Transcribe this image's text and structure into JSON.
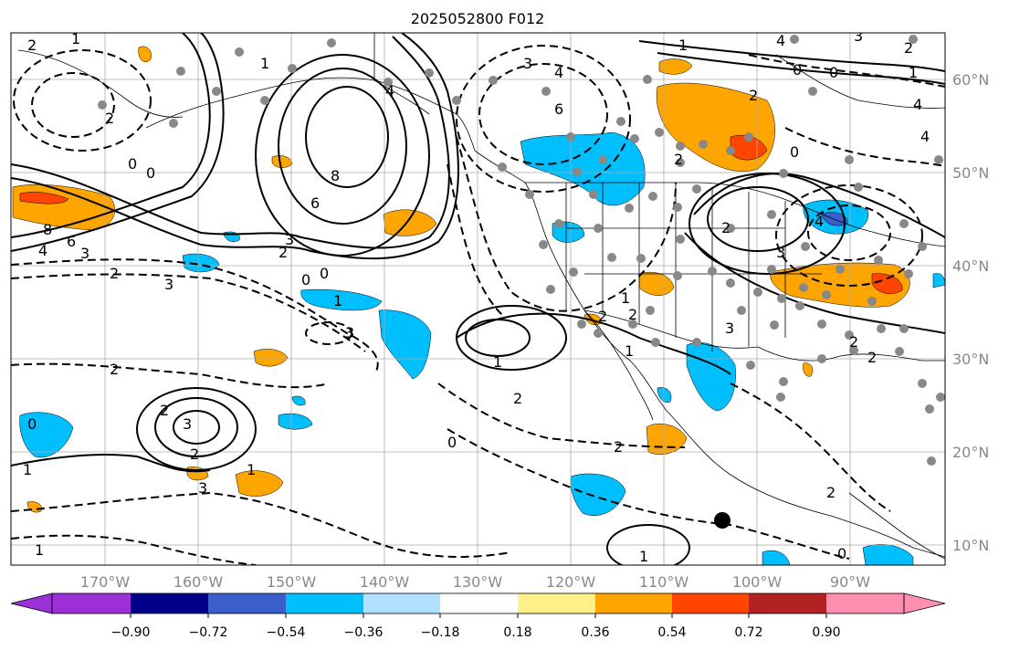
{
  "title": "2025052800 F012",
  "longitude_labels": [
    "170°W",
    "160°W",
    "150°W",
    "140°W",
    "130°W",
    "120°W",
    "110°W",
    "100°W",
    "90°W"
  ],
  "latitude_labels": [
    "60°N",
    "50°N",
    "40°N",
    "30°N",
    "20°N",
    "10°N"
  ],
  "colorbar": {
    "tick_labels": [
      "−0.90",
      "−0.72",
      "−0.54",
      "−0.36",
      "−0.18",
      "0.18",
      "0.36",
      "0.54",
      "0.72",
      "0.90"
    ],
    "colors": [
      "#9b30d9",
      "#00008b",
      "#3a5fcd",
      "#00bfff",
      "#b0e2ff",
      "#ffffff",
      "#fff08a",
      "#ffa500",
      "#ff4500",
      "#b22222",
      "#ff8fb0"
    ]
  },
  "contour_labels": [
    {
      "id": "c-2-a",
      "text": "2"
    },
    {
      "id": "c1-a",
      "text": "1"
    },
    {
      "id": "c-2-b",
      "text": "2"
    },
    {
      "id": "c1-b",
      "text": "1"
    },
    {
      "id": "c-8-a",
      "text": "8"
    },
    {
      "id": "c-6-a",
      "text": "6"
    },
    {
      "id": "c-4-a",
      "text": "4"
    },
    {
      "id": "c-3-a",
      "text": "3"
    },
    {
      "id": "c-2-c",
      "text": "2"
    },
    {
      "id": "c0-a",
      "text": "0"
    },
    {
      "id": "c0-b",
      "text": "0"
    },
    {
      "id": "c8-b",
      "text": "8"
    },
    {
      "id": "c6-b",
      "text": "6"
    },
    {
      "id": "c3-b",
      "text": "3"
    },
    {
      "id": "c2-d",
      "text": "2"
    },
    {
      "id": "c0-c",
      "text": "0"
    },
    {
      "id": "c0-d",
      "text": "0"
    },
    {
      "id": "c-3-e",
      "text": "3"
    },
    {
      "id": "c-3-f",
      "text": "3"
    },
    {
      "id": "c-1-g",
      "text": "1"
    },
    {
      "id": "c-3-h",
      "text": "3"
    },
    {
      "id": "c-4-i",
      "text": "4"
    },
    {
      "id": "c-6-j",
      "text": "6"
    },
    {
      "id": "c-2-k",
      "text": "2"
    },
    {
      "id": "c4-l",
      "text": "4"
    },
    {
      "id": "c-2-m",
      "text": "2"
    },
    {
      "id": "c0-n",
      "text": "0"
    },
    {
      "id": "c0-o",
      "text": "0"
    },
    {
      "id": "c-1-p",
      "text": "1"
    },
    {
      "id": "c4-q",
      "text": "4"
    },
    {
      "id": "c-3-r",
      "text": "3"
    },
    {
      "id": "c4-s",
      "text": "4"
    },
    {
      "id": "c3-t",
      "text": "3"
    },
    {
      "id": "c4-u",
      "text": "4"
    },
    {
      "id": "c-2-v",
      "text": "2"
    },
    {
      "id": "c0-w",
      "text": "0"
    },
    {
      "id": "c-2-x",
      "text": "2"
    },
    {
      "id": "c-1-y",
      "text": "1"
    },
    {
      "id": "c1-z",
      "text": "1"
    },
    {
      "id": "c-2-aa",
      "text": "2"
    },
    {
      "id": "c-3-ab",
      "text": "3"
    },
    {
      "id": "c-2-ac",
      "text": "2"
    },
    {
      "id": "c0-ad",
      "text": "0"
    },
    {
      "id": "c-2-ae",
      "text": "2"
    },
    {
      "id": "c-1-af",
      "text": "1"
    },
    {
      "id": "c-1-ag",
      "text": "1"
    },
    {
      "id": "c-1-ah",
      "text": "1"
    },
    {
      "id": "c2-ai",
      "text": "2"
    },
    {
      "id": "c3-aj",
      "text": "3"
    },
    {
      "id": "c-2-ak",
      "text": "2"
    },
    {
      "id": "c-2-al",
      "text": "2"
    },
    {
      "id": "c-2-am",
      "text": "2"
    },
    {
      "id": "c2-an",
      "text": "2"
    },
    {
      "id": "c-1-ao",
      "text": "1"
    },
    {
      "id": "c0-ap",
      "text": "0"
    },
    {
      "id": "c-0-aq",
      "text": "0"
    },
    {
      "id": "c-1-ar",
      "text": "1"
    },
    {
      "id": "c-2-as",
      "text": "2"
    },
    {
      "id": "c-3-at",
      "text": "3"
    },
    {
      "id": "c-4-au",
      "text": "4"
    },
    {
      "id": "c-1-av",
      "text": "1"
    },
    {
      "id": "c-2-aw",
      "text": "2"
    }
  ]
}
